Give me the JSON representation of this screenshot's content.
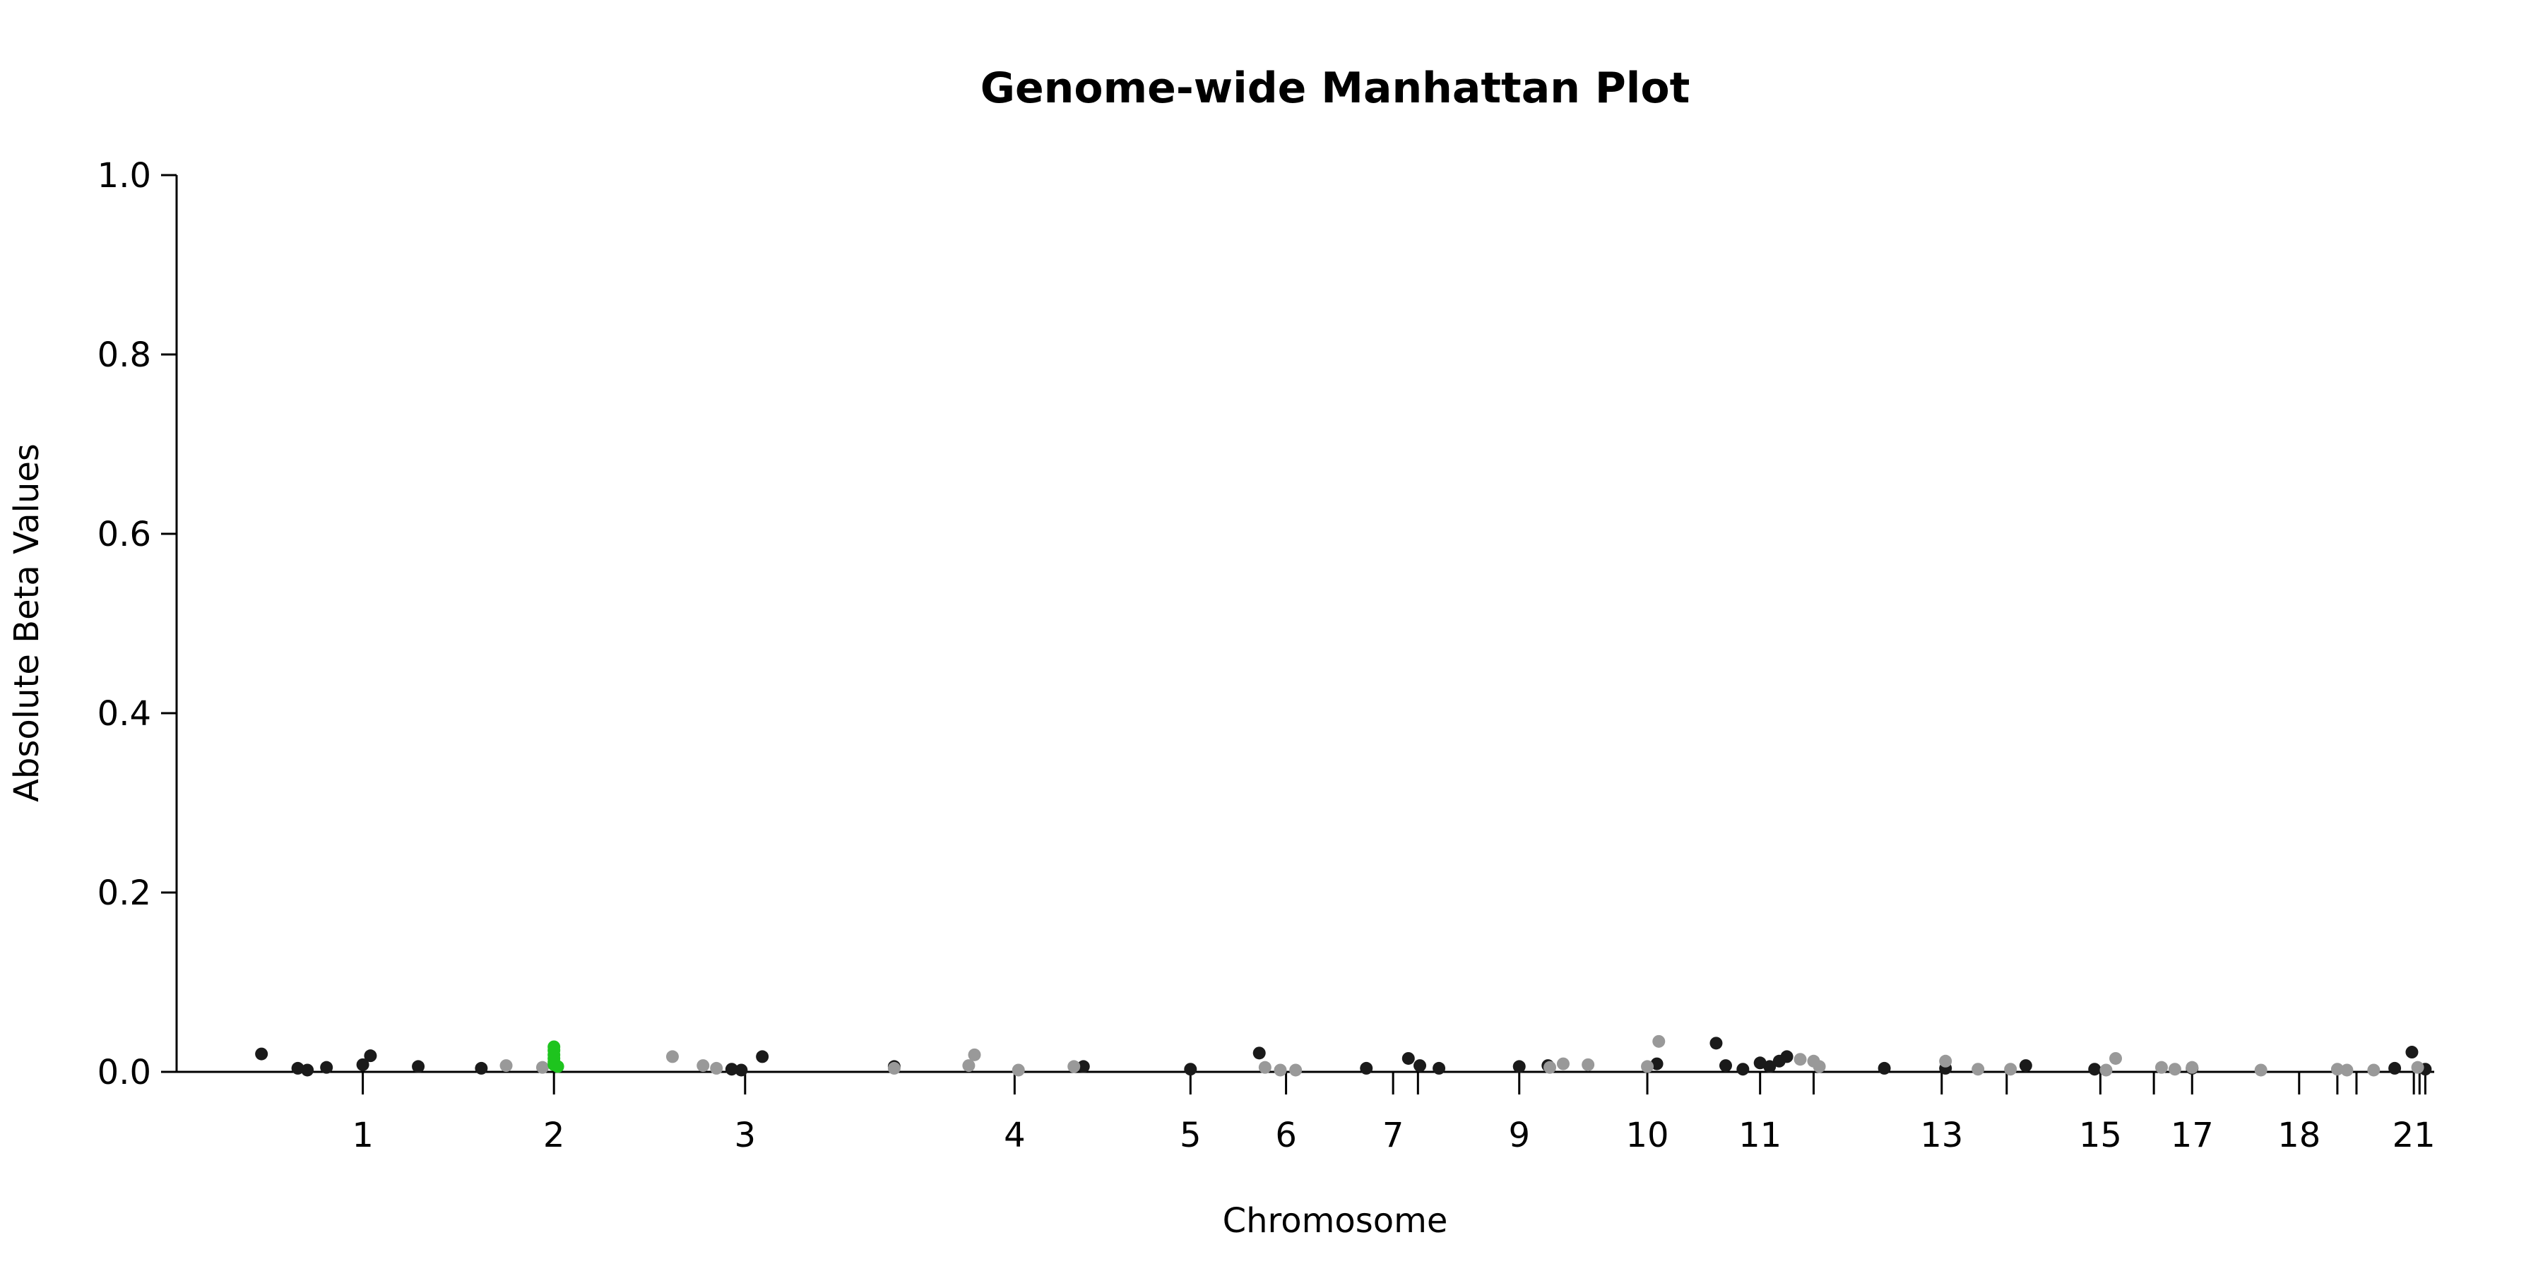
{
  "chart_data": {
    "type": "scatter",
    "title": "Genome-wide Manhattan Plot",
    "xlabel": "Chromosome",
    "ylabel": "Absolute Beta Values",
    "ylim": [
      0,
      1.0
    ],
    "yticks": [
      "0.0",
      "0.2",
      "0.4",
      "0.6",
      "0.8",
      "1.0"
    ],
    "grid": false,
    "legend": "none",
    "colors": {
      "dark": "#1a1a1a",
      "light": "#999999",
      "highlight": "#1ec41e"
    },
    "x_ticks": [
      {
        "chrom": "1",
        "x": 1,
        "label": "1"
      },
      {
        "chrom": "2",
        "x": 2,
        "label": "2"
      },
      {
        "chrom": "3",
        "x": 3,
        "label": "3"
      },
      {
        "chrom": "4",
        "x": 4.41,
        "label": "4"
      },
      {
        "chrom": "5",
        "x": 5.33,
        "label": "5"
      },
      {
        "chrom": "6",
        "x": 5.83,
        "label": "6"
      },
      {
        "chrom": "7",
        "x": 6.39,
        "label": "7"
      },
      {
        "chrom": "8",
        "x": 6.52,
        "label": ""
      },
      {
        "chrom": "9",
        "x": 7.05,
        "label": "9"
      },
      {
        "chrom": "10",
        "x": 7.72,
        "label": "10"
      },
      {
        "chrom": "11",
        "x": 8.31,
        "label": "11"
      },
      {
        "chrom": "12",
        "x": 8.59,
        "label": ""
      },
      {
        "chrom": "13",
        "x": 9.26,
        "label": "13"
      },
      {
        "chrom": "14",
        "x": 9.6,
        "label": ""
      },
      {
        "chrom": "15",
        "x": 10.09,
        "label": "15"
      },
      {
        "chrom": "16",
        "x": 10.37,
        "label": ""
      },
      {
        "chrom": "17",
        "x": 10.57,
        "label": "17"
      },
      {
        "chrom": "18",
        "x": 11.13,
        "label": "18"
      },
      {
        "chrom": "19",
        "x": 11.33,
        "label": ""
      },
      {
        "chrom": "20",
        "x": 11.43,
        "label": ""
      },
      {
        "chrom": "21",
        "x": 11.73,
        "label": "21"
      },
      {
        "chrom": "22",
        "x": 11.76,
        "label": ""
      },
      {
        "chrom": "X",
        "x": 11.79,
        "label": ""
      }
    ],
    "series": [
      {
        "color_key": "dark",
        "points": [
          {
            "x": 0.47,
            "y": 0.02
          },
          {
            "x": 0.66,
            "y": 0.004
          },
          {
            "x": 0.71,
            "y": 0.002
          },
          {
            "x": 0.81,
            "y": 0.005
          },
          {
            "x": 1.0,
            "y": 0.008
          },
          {
            "x": 1.04,
            "y": 0.018
          },
          {
            "x": 1.29,
            "y": 0.006
          },
          {
            "x": 1.62,
            "y": 0.004
          },
          {
            "x": 2.93,
            "y": 0.003
          },
          {
            "x": 2.98,
            "y": 0.002
          },
          {
            "x": 3.09,
            "y": 0.017
          },
          {
            "x": 3.78,
            "y": 0.006
          },
          {
            "x": 4.77,
            "y": 0.006
          },
          {
            "x": 5.33,
            "y": 0.003
          },
          {
            "x": 5.69,
            "y": 0.021
          },
          {
            "x": 6.25,
            "y": 0.004
          },
          {
            "x": 6.47,
            "y": 0.015
          },
          {
            "x": 6.53,
            "y": 0.007
          },
          {
            "x": 6.63,
            "y": 0.004
          },
          {
            "x": 7.05,
            "y": 0.006
          },
          {
            "x": 7.2,
            "y": 0.007
          },
          {
            "x": 7.77,
            "y": 0.009
          },
          {
            "x": 8.08,
            "y": 0.032
          },
          {
            "x": 8.13,
            "y": 0.007
          },
          {
            "x": 8.22,
            "y": 0.003
          },
          {
            "x": 8.31,
            "y": 0.01
          },
          {
            "x": 8.36,
            "y": 0.006
          },
          {
            "x": 8.41,
            "y": 0.012
          },
          {
            "x": 8.45,
            "y": 0.017
          },
          {
            "x": 8.96,
            "y": 0.004
          },
          {
            "x": 9.28,
            "y": 0.004
          },
          {
            "x": 9.7,
            "y": 0.007
          },
          {
            "x": 10.06,
            "y": 0.003
          },
          {
            "x": 10.57,
            "y": 0.004
          },
          {
            "x": 11.63,
            "y": 0.004
          },
          {
            "x": 11.72,
            "y": 0.022
          },
          {
            "x": 11.79,
            "y": 0.003
          }
        ]
      },
      {
        "color_key": "light",
        "points": [
          {
            "x": 1.75,
            "y": 0.007
          },
          {
            "x": 1.94,
            "y": 0.005
          },
          {
            "x": 2.62,
            "y": 0.017
          },
          {
            "x": 2.78,
            "y": 0.007
          },
          {
            "x": 2.85,
            "y": 0.004
          },
          {
            "x": 3.78,
            "y": 0.004
          },
          {
            "x": 4.17,
            "y": 0.007
          },
          {
            "x": 4.2,
            "y": 0.019
          },
          {
            "x": 4.43,
            "y": 0.002
          },
          {
            "x": 4.72,
            "y": 0.006
          },
          {
            "x": 5.72,
            "y": 0.005
          },
          {
            "x": 5.8,
            "y": 0.002
          },
          {
            "x": 5.88,
            "y": 0.002
          },
          {
            "x": 7.21,
            "y": 0.005
          },
          {
            "x": 7.28,
            "y": 0.009
          },
          {
            "x": 7.41,
            "y": 0.008
          },
          {
            "x": 7.72,
            "y": 0.006
          },
          {
            "x": 7.78,
            "y": 0.034
          },
          {
            "x": 8.52,
            "y": 0.014
          },
          {
            "x": 8.59,
            "y": 0.012
          },
          {
            "x": 8.62,
            "y": 0.006
          },
          {
            "x": 9.28,
            "y": 0.012
          },
          {
            "x": 9.45,
            "y": 0.003
          },
          {
            "x": 9.62,
            "y": 0.003
          },
          {
            "x": 10.12,
            "y": 0.002
          },
          {
            "x": 10.17,
            "y": 0.015
          },
          {
            "x": 10.41,
            "y": 0.005
          },
          {
            "x": 10.48,
            "y": 0.003
          },
          {
            "x": 10.57,
            "y": 0.005
          },
          {
            "x": 10.93,
            "y": 0.002
          },
          {
            "x": 11.33,
            "y": 0.003
          },
          {
            "x": 11.38,
            "y": 0.002
          },
          {
            "x": 11.52,
            "y": 0.002
          },
          {
            "x": 11.75,
            "y": 0.005
          }
        ]
      },
      {
        "color_key": "highlight",
        "points": [
          {
            "x": 2.0,
            "y": 0.028
          },
          {
            "x": 2.0,
            "y": 0.024
          },
          {
            "x": 2.0,
            "y": 0.019
          },
          {
            "x": 2.0,
            "y": 0.015
          },
          {
            "x": 2.0,
            "y": 0.011
          },
          {
            "x": 2.0,
            "y": 0.008
          },
          {
            "x": 2.02,
            "y": 0.006
          }
        ]
      }
    ]
  }
}
